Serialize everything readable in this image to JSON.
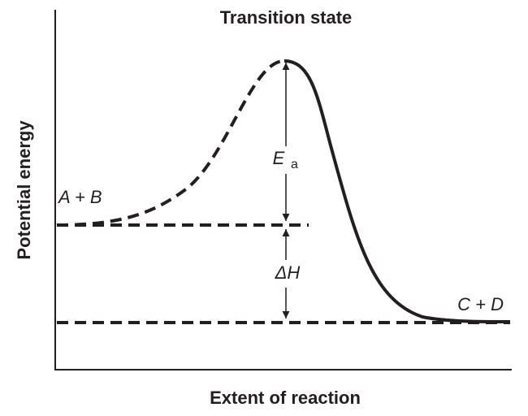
{
  "title": "Transition state",
  "axes": {
    "x_label": "Extent of reaction",
    "y_label": "Potential energy"
  },
  "labels": {
    "reactants": "A + B",
    "products": "C + D",
    "activation_energy": "E",
    "activation_energy_subscript": "a",
    "enthalpy_change": "ΔH"
  }
}
